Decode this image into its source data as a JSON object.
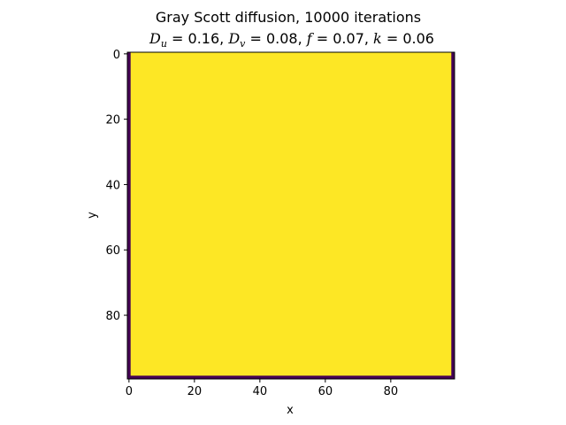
{
  "chart_data": {
    "type": "heatmap",
    "title": "Gray Scott diffusion, 10000 iterations",
    "subtitle_parts": {
      "Du_symbol": "D",
      "Du_sub": "u",
      "Du_value": " = 0.16, ",
      "Dv_symbol": "D",
      "Dv_sub": "v",
      "Dv_value": " = 0.08, ",
      "f_symbol": "f",
      "f_value": " = 0.07, ",
      "k_symbol": "k",
      "k_value": " = 0.06"
    },
    "xlabel": "x",
    "ylabel": "y",
    "grid_size": [
      100,
      100
    ],
    "xlim": [
      -0.5,
      99.5
    ],
    "ylim": [
      -0.5,
      99.5
    ],
    "y_inverted": true,
    "x_ticks": [
      0,
      20,
      40,
      60,
      80
    ],
    "y_ticks": [
      0,
      20,
      40,
      60,
      80
    ],
    "regions": [
      {
        "name": "boundary",
        "value": 0,
        "x_range": [
          0,
          99
        ],
        "y_range": [
          0,
          99
        ],
        "color": "#440154"
      },
      {
        "name": "interior",
        "value": 1,
        "x_range": [
          1,
          98
        ],
        "y_range": [
          0,
          98
        ],
        "color": "#fde725"
      }
    ],
    "colormap": "viridis",
    "grid": false
  }
}
